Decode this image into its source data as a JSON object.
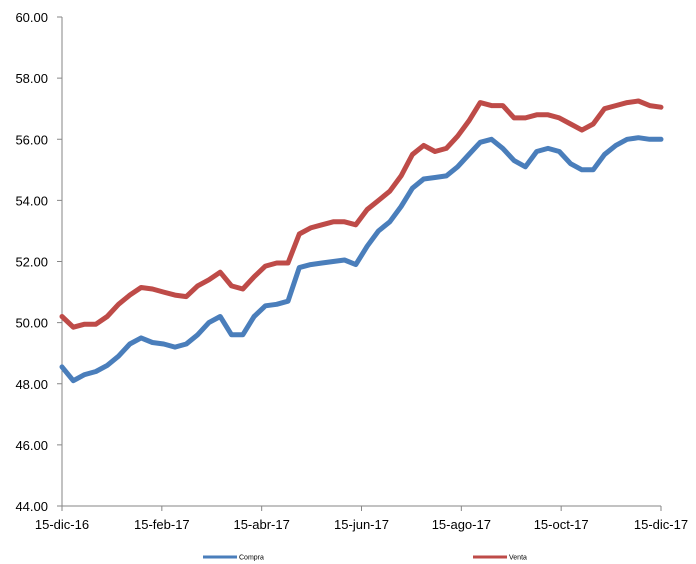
{
  "chart_data": {
    "type": "line",
    "title": "",
    "xlabel": "",
    "ylabel": "",
    "ylim": [
      44,
      60
    ],
    "yticks": [
      "44.00",
      "46.00",
      "48.00",
      "50.00",
      "52.00",
      "54.00",
      "56.00",
      "58.00",
      "60.00"
    ],
    "xticks": [
      "15-dic-16",
      "15-feb-17",
      "15-abr-17",
      "15-jun-17",
      "15-ago-17",
      "15-oct-17",
      "15-dic-17"
    ],
    "grid": false,
    "legend_position": "bottom",
    "x": [
      "15-dic-16",
      "22-dic-16",
      "29-dic-16",
      "05-ene-17",
      "12-ene-17",
      "19-ene-17",
      "26-ene-17",
      "02-feb-17",
      "09-feb-17",
      "15-feb-17",
      "22-feb-17",
      "01-mar-17",
      "08-mar-17",
      "15-mar-17",
      "22-mar-17",
      "29-mar-17",
      "05-abr-17",
      "15-abr-17",
      "22-abr-17",
      "29-abr-17",
      "06-may-17",
      "13-may-17",
      "20-may-17",
      "27-may-17",
      "03-jun-17",
      "10-jun-17",
      "15-jun-17",
      "22-jun-17",
      "29-jun-17",
      "06-jul-17",
      "13-jul-17",
      "20-jul-17",
      "27-jul-17",
      "03-ago-17",
      "10-ago-17",
      "15-ago-17",
      "22-ago-17",
      "29-ago-17",
      "05-sep-17",
      "12-sep-17",
      "19-sep-17",
      "26-sep-17",
      "03-oct-17",
      "10-oct-17",
      "15-oct-17",
      "22-oct-17",
      "29-oct-17",
      "05-nov-17",
      "12-nov-17",
      "19-nov-17",
      "26-nov-17",
      "03-dic-17",
      "10-dic-17",
      "15-dic-17"
    ],
    "series": [
      {
        "name": "Compra",
        "color": "#4a7ebb",
        "values": [
          48.55,
          48.1,
          48.3,
          48.4,
          48.6,
          48.9,
          49.3,
          49.5,
          49.35,
          49.3,
          49.2,
          49.3,
          49.6,
          50.0,
          50.2,
          49.6,
          49.6,
          50.2,
          50.55,
          50.6,
          50.7,
          51.8,
          51.9,
          51.95,
          52.0,
          52.05,
          51.9,
          52.5,
          53.0,
          53.3,
          53.8,
          54.4,
          54.7,
          54.75,
          54.8,
          55.1,
          55.5,
          55.9,
          56.0,
          55.7,
          55.3,
          55.1,
          55.6,
          55.7,
          55.6,
          55.2,
          55.0,
          55.0,
          55.5,
          55.8,
          56.0,
          56.05,
          56.0,
          56.0
        ]
      },
      {
        "name": "Venta",
        "color": "#be4b48",
        "values": [
          50.2,
          49.85,
          49.95,
          49.95,
          50.2,
          50.6,
          50.9,
          51.15,
          51.1,
          51.0,
          50.9,
          50.85,
          51.2,
          51.4,
          51.65,
          51.2,
          51.1,
          51.5,
          51.85,
          51.95,
          51.95,
          52.9,
          53.1,
          53.2,
          53.3,
          53.3,
          53.2,
          53.7,
          54.0,
          54.3,
          54.8,
          55.5,
          55.8,
          55.6,
          55.7,
          56.1,
          56.6,
          57.2,
          57.1,
          57.1,
          56.7,
          56.7,
          56.8,
          56.8,
          56.7,
          56.5,
          56.3,
          56.5,
          57.0,
          57.1,
          57.2,
          57.25,
          57.1,
          57.05
        ]
      }
    ]
  },
  "legend": {
    "compra_label": "Compra",
    "venta_label": "Venta"
  }
}
